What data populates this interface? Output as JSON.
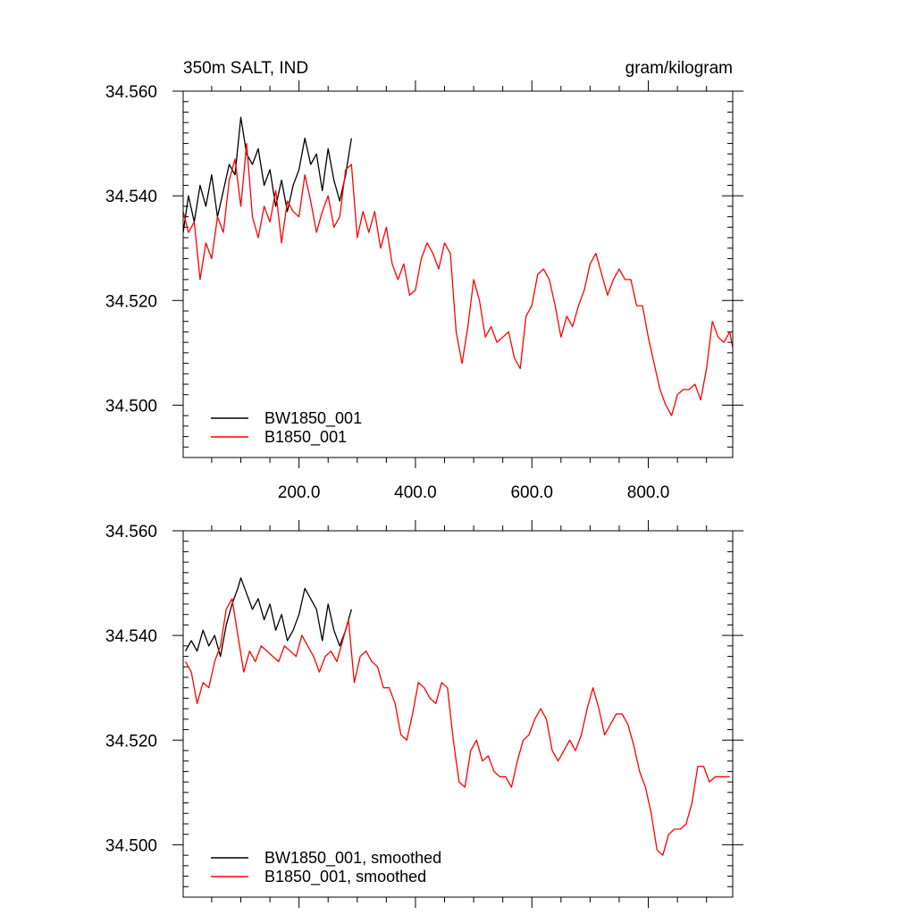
{
  "figure": {
    "title_left": "350m SALT, IND",
    "title_right": "gram/kilogram"
  },
  "chart_data": [
    {
      "type": "line",
      "title": "350m SALT, IND",
      "units": "gram/kilogram",
      "xlim": [
        1,
        945
      ],
      "ylim": [
        34.49,
        34.56
      ],
      "x_ticks": [
        200,
        400,
        600,
        800
      ],
      "x_tick_labels": [
        "200.0",
        "400.0",
        "600.0",
        "800.0"
      ],
      "y_ticks": [
        34.5,
        34.52,
        34.54,
        34.56
      ],
      "y_tick_labels": [
        "34.500",
        "34.520",
        "34.540",
        "34.560"
      ],
      "legend_position": "bottom-left",
      "series": [
        {
          "name": "BW1850_001",
          "color": "#000000",
          "x": [
            1,
            10,
            20,
            30,
            40,
            50,
            60,
            70,
            80,
            90,
            100,
            110,
            120,
            130,
            140,
            150,
            160,
            170,
            180,
            190,
            200,
            210,
            220,
            230,
            240,
            250,
            260,
            270,
            280,
            290
          ],
          "y": [
            34.533,
            34.54,
            34.535,
            34.542,
            34.538,
            34.544,
            34.536,
            34.541,
            34.546,
            34.544,
            34.555,
            34.548,
            34.546,
            34.549,
            34.542,
            34.545,
            34.538,
            34.543,
            34.537,
            34.542,
            34.545,
            34.551,
            34.546,
            34.548,
            34.541,
            34.549,
            34.543,
            34.539,
            34.544,
            34.551
          ]
        },
        {
          "name": "B1850_001",
          "color": "#ff0000",
          "x": [
            1,
            10,
            20,
            30,
            40,
            50,
            60,
            70,
            80,
            90,
            100,
            110,
            120,
            130,
            140,
            150,
            160,
            170,
            180,
            190,
            200,
            210,
            220,
            230,
            240,
            250,
            260,
            270,
            280,
            290,
            300,
            310,
            320,
            330,
            340,
            350,
            360,
            370,
            380,
            390,
            400,
            410,
            420,
            430,
            440,
            450,
            460,
            470,
            480,
            490,
            500,
            510,
            520,
            530,
            540,
            550,
            560,
            570,
            580,
            590,
            600,
            610,
            620,
            630,
            640,
            650,
            660,
            670,
            680,
            690,
            700,
            710,
            720,
            730,
            740,
            750,
            760,
            770,
            780,
            790,
            800,
            810,
            820,
            830,
            840,
            850,
            860,
            870,
            880,
            890,
            900,
            910,
            920,
            930,
            940,
            945
          ],
          "y": [
            34.537,
            34.533,
            34.535,
            34.524,
            34.531,
            34.528,
            34.536,
            34.533,
            34.543,
            34.547,
            34.538,
            34.55,
            34.536,
            34.532,
            34.538,
            34.535,
            34.541,
            34.531,
            34.539,
            34.537,
            34.536,
            34.544,
            34.539,
            34.533,
            34.537,
            34.54,
            34.534,
            34.536,
            34.545,
            34.546,
            34.532,
            34.537,
            34.533,
            34.537,
            34.53,
            34.534,
            34.527,
            34.524,
            34.527,
            34.521,
            34.522,
            34.528,
            34.531,
            34.529,
            34.526,
            34.531,
            34.529,
            34.514,
            34.508,
            34.515,
            34.524,
            34.52,
            34.513,
            34.515,
            34.512,
            34.513,
            34.514,
            34.509,
            34.507,
            34.517,
            34.519,
            34.525,
            34.526,
            34.524,
            34.519,
            34.513,
            34.517,
            34.515,
            34.519,
            34.522,
            34.527,
            34.529,
            34.525,
            34.521,
            34.524,
            34.526,
            34.524,
            34.524,
            34.519,
            34.519,
            34.513,
            34.508,
            34.503,
            34.5,
            34.498,
            34.502,
            34.503,
            34.503,
            34.504,
            34.501,
            34.507,
            34.516,
            34.513,
            34.512,
            34.514,
            34.511
          ]
        }
      ]
    },
    {
      "type": "line",
      "xlim": [
        1,
        945
      ],
      "ylim": [
        34.49,
        34.56
      ],
      "x_ticks": [
        200,
        400,
        600,
        800
      ],
      "y_ticks": [
        34.5,
        34.52,
        34.54,
        34.56
      ],
      "y_tick_labels": [
        "34.500",
        "34.520",
        "34.540",
        "34.560"
      ],
      "legend_position": "bottom-left",
      "series": [
        {
          "name": "BW1850_001, smoothed",
          "color": "#000000",
          "x": [
            5,
            15,
            25,
            35,
            45,
            55,
            65,
            75,
            85,
            95,
            100,
            110,
            120,
            130,
            140,
            150,
            160,
            170,
            180,
            190,
            200,
            210,
            220,
            230,
            240,
            250,
            260,
            270,
            280,
            290
          ],
          "y": [
            34.537,
            34.539,
            34.537,
            34.541,
            34.538,
            34.54,
            34.536,
            34.542,
            34.546,
            34.549,
            34.551,
            34.548,
            34.545,
            34.547,
            34.543,
            34.546,
            34.541,
            34.544,
            34.539,
            34.541,
            34.544,
            34.549,
            34.547,
            34.545,
            34.539,
            34.546,
            34.541,
            34.538,
            34.541,
            34.545
          ]
        },
        {
          "name": "B1850_001, smoothed",
          "color": "#ff0000",
          "x": [
            5,
            15,
            25,
            35,
            45,
            55,
            65,
            75,
            85,
            95,
            105,
            115,
            125,
            135,
            145,
            155,
            165,
            175,
            185,
            195,
            205,
            215,
            225,
            235,
            245,
            255,
            265,
            275,
            285,
            295,
            305,
            315,
            325,
            335,
            345,
            355,
            365,
            375,
            385,
            395,
            405,
            415,
            425,
            435,
            445,
            455,
            465,
            475,
            485,
            495,
            505,
            515,
            525,
            535,
            545,
            555,
            565,
            575,
            585,
            595,
            605,
            615,
            625,
            635,
            645,
            655,
            665,
            675,
            685,
            695,
            705,
            715,
            725,
            735,
            745,
            755,
            765,
            775,
            785,
            795,
            805,
            815,
            825,
            835,
            845,
            855,
            865,
            875,
            885,
            895,
            905,
            915,
            925,
            935,
            940
          ],
          "y": [
            34.535,
            34.533,
            34.527,
            34.531,
            34.53,
            34.535,
            34.538,
            34.545,
            34.547,
            34.54,
            34.533,
            34.537,
            34.535,
            34.538,
            34.537,
            34.536,
            34.535,
            34.538,
            34.537,
            34.536,
            34.54,
            34.538,
            34.536,
            34.533,
            34.536,
            34.537,
            34.535,
            34.539,
            34.543,
            34.531,
            34.536,
            34.537,
            34.535,
            34.534,
            34.53,
            34.53,
            34.527,
            34.521,
            34.52,
            34.525,
            34.531,
            34.53,
            34.528,
            34.527,
            34.531,
            34.53,
            34.52,
            34.512,
            34.511,
            34.518,
            34.52,
            34.516,
            34.517,
            34.514,
            34.513,
            34.513,
            34.511,
            34.516,
            34.52,
            34.521,
            34.524,
            34.526,
            34.524,
            34.518,
            34.516,
            34.518,
            34.52,
            34.518,
            34.521,
            34.526,
            34.53,
            34.526,
            34.521,
            34.523,
            34.525,
            34.525,
            34.523,
            34.519,
            34.514,
            34.511,
            34.506,
            34.499,
            34.498,
            34.502,
            34.503,
            34.503,
            34.504,
            34.508,
            34.515,
            34.515,
            34.512,
            34.513,
            34.513,
            34.513,
            34.513
          ]
        }
      ]
    }
  ]
}
